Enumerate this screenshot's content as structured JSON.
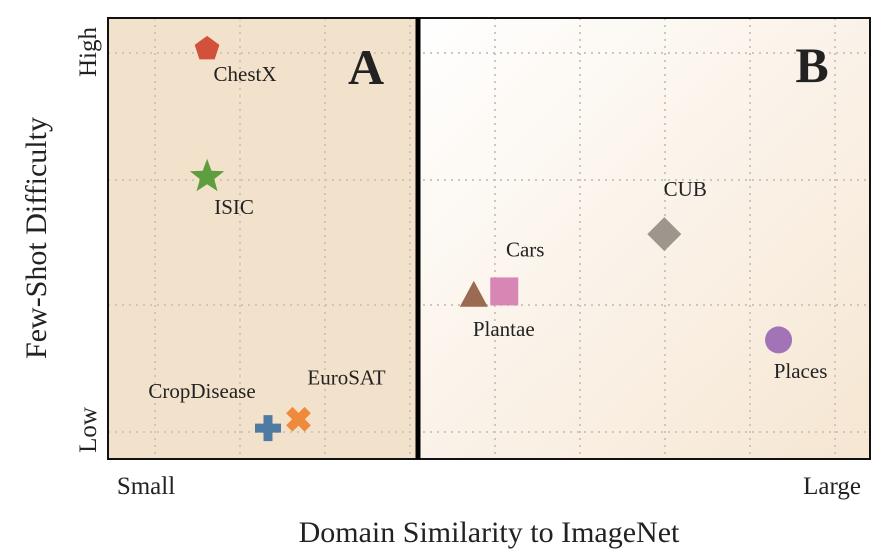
{
  "chart_data": {
    "type": "scatter",
    "title": "",
    "xlabel": "Domain Similarity to ImageNet",
    "ylabel": "Few-Shot Difficulty",
    "x_tick_labels": {
      "low": "Small",
      "high": "Large"
    },
    "y_tick_labels": {
      "low": "Low",
      "high": "High"
    },
    "xlim": [
      0,
      1
    ],
    "ylim": [
      0,
      1
    ],
    "grid": true,
    "regions": [
      {
        "name": "A",
        "x_range": [
          0,
          0.4
        ],
        "color": "#f3e2cb"
      },
      {
        "name": "B",
        "x_range": [
          0.4,
          1
        ],
        "color": "#fdf4ea"
      }
    ],
    "divider_x": 0.4,
    "points": [
      {
        "name": "ChestX",
        "x": 0.13,
        "y": 0.93,
        "marker": "pentagon",
        "color": "#d2513a"
      },
      {
        "name": "ISIC",
        "x": 0.13,
        "y": 0.64,
        "marker": "star",
        "color": "#5e9e3f"
      },
      {
        "name": "CropDisease",
        "x": 0.21,
        "y": 0.07,
        "marker": "plus",
        "color": "#4f7ba3"
      },
      {
        "name": "EuroSAT",
        "x": 0.25,
        "y": 0.09,
        "marker": "x",
        "color": "#ef8a3c"
      },
      {
        "name": "Plantae",
        "x": 0.48,
        "y": 0.37,
        "marker": "triangle",
        "color": "#9b6a52"
      },
      {
        "name": "Cars",
        "x": 0.52,
        "y": 0.38,
        "marker": "square",
        "color": "#d886b4"
      },
      {
        "name": "CUB",
        "x": 0.73,
        "y": 0.51,
        "marker": "diamond",
        "color": "#9e968d"
      },
      {
        "name": "Places",
        "x": 0.88,
        "y": 0.27,
        "marker": "circle",
        "color": "#a273b6"
      }
    ]
  }
}
